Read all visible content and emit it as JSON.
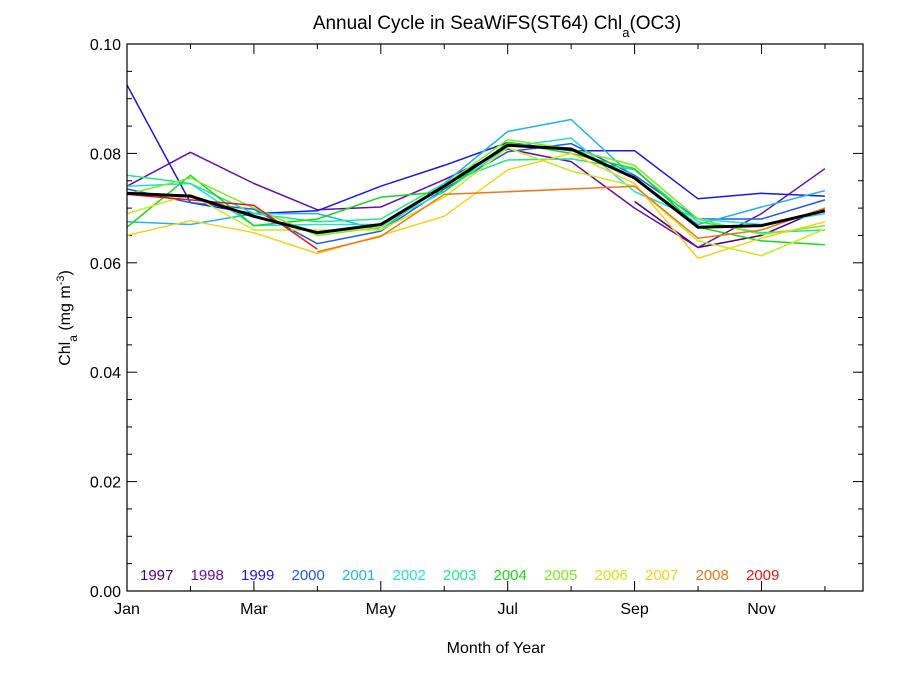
{
  "chart_data": {
    "type": "line",
    "title": "Annual Cycle in SeaWiFS(ST64) Chl",
    "title_sub": "a",
    "title_suffix": "(OC3)",
    "xlabel": "Month of Year",
    "ylabel_main": "Chl",
    "ylabel_sub": "a",
    "ylabel_units": " (mg m",
    "ylabel_exp": "-3",
    "ylabel_close": ")",
    "xlim": [
      1,
      12.6
    ],
    "ylim": [
      0,
      0.1
    ],
    "x_ticks": [
      {
        "value": 1,
        "label": "Jan"
      },
      {
        "value": 3,
        "label": "Mar"
      },
      {
        "value": 5,
        "label": "May"
      },
      {
        "value": 7,
        "label": "Jul"
      },
      {
        "value": 9,
        "label": "Sep"
      },
      {
        "value": 11,
        "label": "Nov"
      }
    ],
    "y_ticks": [
      {
        "value": 0.0,
        "label": "0.00"
      },
      {
        "value": 0.02,
        "label": "0.02"
      },
      {
        "value": 0.04,
        "label": "0.04"
      },
      {
        "value": 0.06,
        "label": "0.06"
      },
      {
        "value": 0.08,
        "label": "0.08"
      },
      {
        "value": 0.1,
        "label": "0.10"
      }
    ],
    "x": [
      1,
      2,
      3,
      4,
      5,
      6,
      7,
      8,
      9,
      10,
      11,
      12
    ],
    "legend_placement": "bottom-inside",
    "series": [
      {
        "name": "1997",
        "color": "#4b0082",
        "values": [
          null,
          null,
          null,
          null,
          null,
          null,
          null,
          null,
          0.0712,
          0.0628,
          0.065,
          0.07
        ]
      },
      {
        "name": "1998",
        "color": "#6a0dad",
        "values": [
          0.074,
          0.0802,
          0.0745,
          0.0697,
          0.0702,
          0.0752,
          0.0808,
          0.0785,
          0.07,
          0.0628,
          0.069,
          0.0772
        ]
      },
      {
        "name": "1999",
        "color": "#1a1ae6",
        "values": [
          0.0925,
          0.071,
          0.069,
          0.0695,
          0.074,
          0.0778,
          0.082,
          0.0805,
          0.0805,
          0.0717,
          0.0727,
          0.0722
        ]
      },
      {
        "name": "2000",
        "color": "#1e5ae6",
        "values": [
          0.0735,
          0.071,
          0.0698,
          0.0635,
          0.0658,
          0.0735,
          0.0803,
          0.0818,
          0.076,
          0.068,
          0.068,
          0.0715
        ]
      },
      {
        "name": "2001",
        "color": "#20b4f0",
        "values": [
          0.0675,
          0.067,
          0.069,
          0.069,
          0.066,
          0.0745,
          0.084,
          0.0862,
          0.0755,
          0.067,
          0.0702,
          0.0732
        ]
      },
      {
        "name": "2002",
        "color": "#20e0d8",
        "values": [
          0.074,
          0.0745,
          0.0668,
          0.067,
          0.067,
          0.073,
          0.0812,
          0.0828,
          0.073,
          0.068,
          0.067,
          0.069
        ]
      },
      {
        "name": "2003",
        "color": "#20e88c",
        "values": [
          0.076,
          0.0745,
          0.069,
          0.0675,
          0.068,
          0.0745,
          0.0788,
          0.079,
          0.077,
          0.0675,
          0.0655,
          0.066
        ]
      },
      {
        "name": "2004",
        "color": "#18d818",
        "values": [
          0.0665,
          0.076,
          0.0668,
          0.068,
          0.072,
          0.073,
          0.082,
          0.08,
          0.0772,
          0.0665,
          0.064,
          0.0633
        ]
      },
      {
        "name": "2005",
        "color": "#78ee20",
        "values": [
          0.0725,
          0.0755,
          0.07,
          0.065,
          0.0665,
          0.0742,
          0.0825,
          0.0808,
          0.0778,
          0.068,
          0.0652,
          0.0668
        ]
      },
      {
        "name": "2006",
        "color": "#c8ec18",
        "values": [
          0.069,
          0.0725,
          0.066,
          0.066,
          0.066,
          0.072,
          0.081,
          0.0768,
          0.074,
          0.064,
          0.0613,
          0.0662
        ]
      },
      {
        "name": "2007",
        "color": "#f8d018",
        "values": [
          0.065,
          0.0677,
          0.0655,
          0.0617,
          0.065,
          0.0685,
          0.077,
          0.08,
          0.0745,
          0.0608,
          0.0645,
          0.0675
        ]
      },
      {
        "name": "2008",
        "color": "#f07818",
        "values": [
          null,
          null,
          null,
          0.062,
          0.0648,
          0.0725,
          0.073,
          0.0735,
          0.074,
          0.0645,
          0.066,
          0.07
        ]
      },
      {
        "name": "2009",
        "color": "#e81818",
        "values": [
          0.0725,
          0.0715,
          0.0705,
          0.0625,
          null,
          null,
          null,
          null,
          null,
          null,
          null,
          null
        ]
      },
      {
        "name": "",
        "color": "#000000",
        "bold": true,
        "values": [
          0.0727,
          0.0722,
          0.0685,
          0.0655,
          0.067,
          0.074,
          0.0815,
          0.0808,
          0.0755,
          0.0665,
          0.0668,
          0.0695
        ]
      }
    ]
  }
}
